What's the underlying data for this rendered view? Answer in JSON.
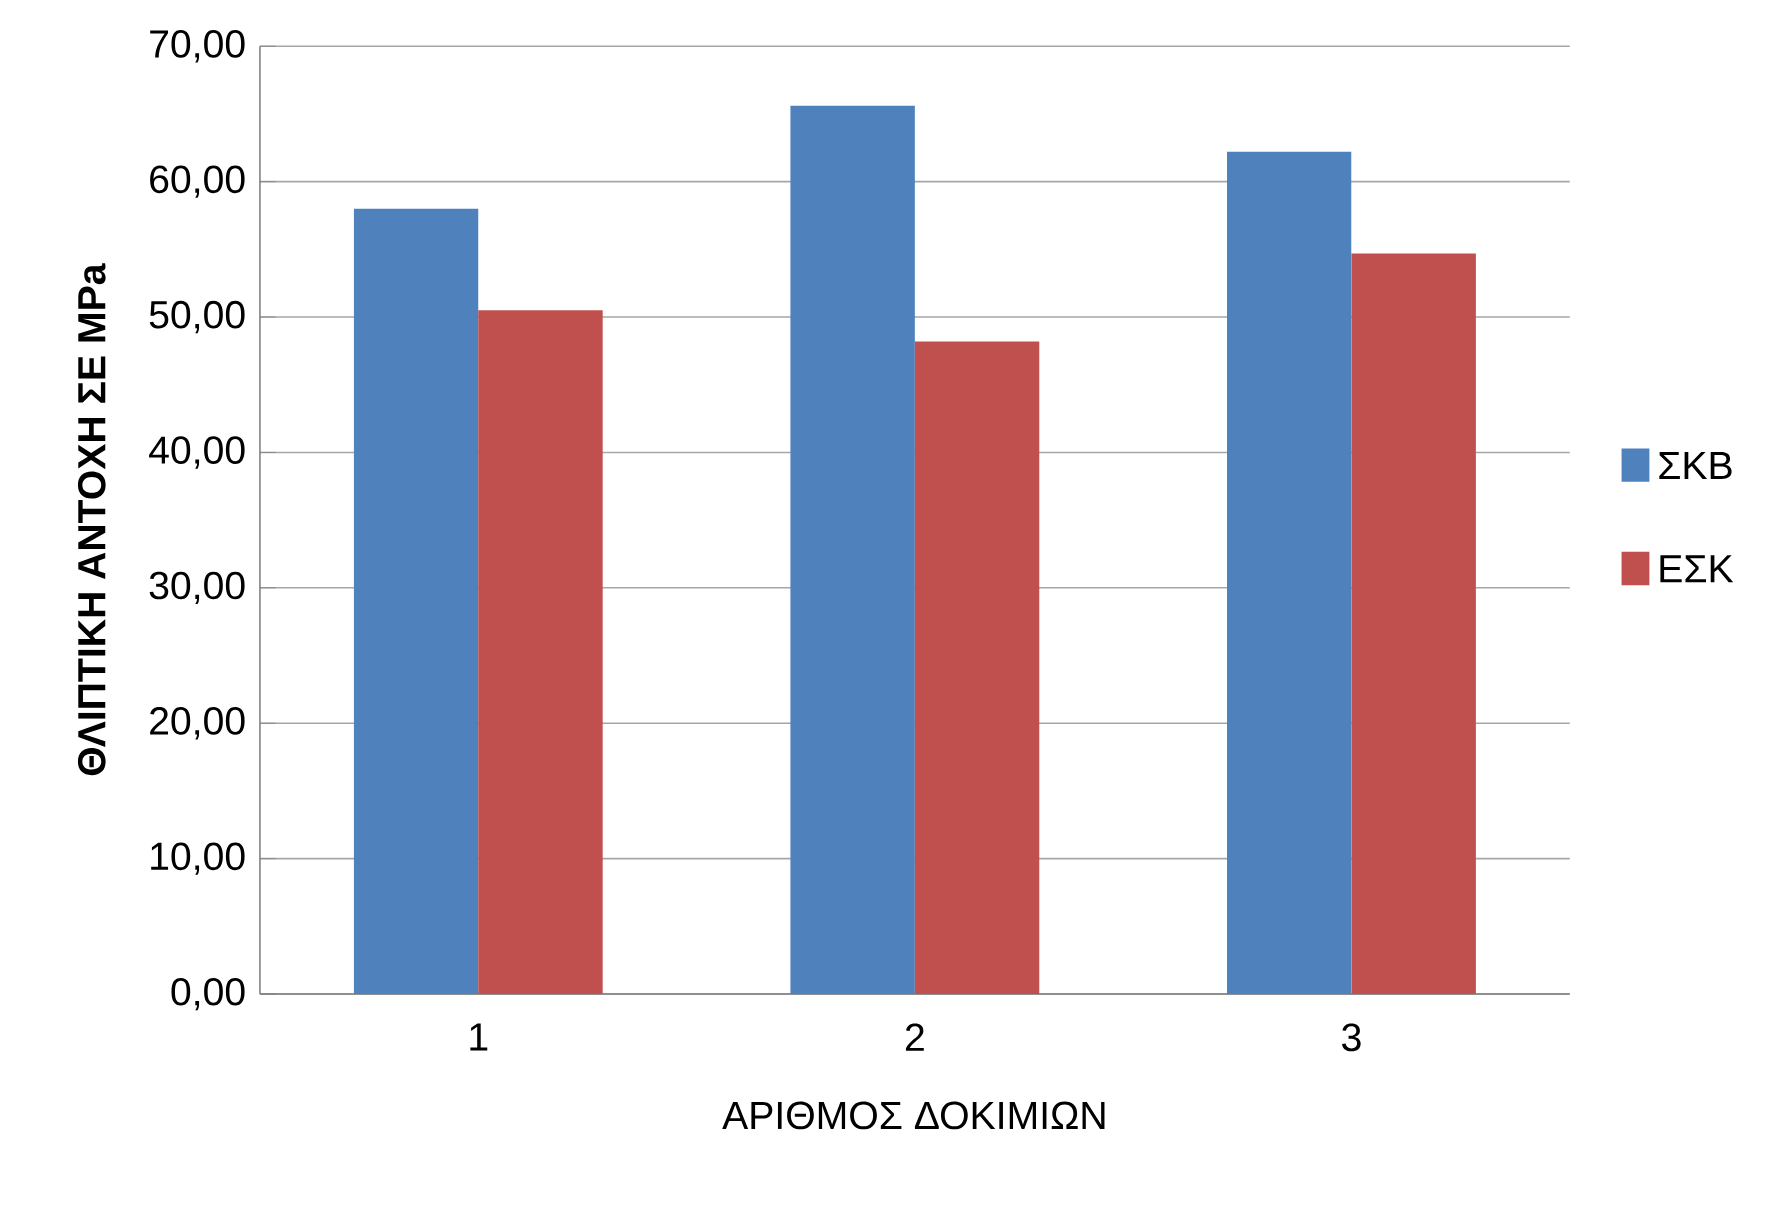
{
  "chart_data": {
    "type": "bar",
    "ylabel": "ΘΛΙΠΤΙΚΗ  ΑΝΤΟΧΗ  ΣΕ  MPa",
    "xlabel": "ΑΡΙΘΜΟΣ ΔΟΚΙΜΙΩΝ",
    "categories": [
      "1",
      "2",
      "3"
    ],
    "series": [
      {
        "name": "ΣΚΒ",
        "color": "#4f81bd",
        "values": [
          58.0,
          65.6,
          62.2
        ]
      },
      {
        "name": "ΕΣΚ",
        "color": "#c0504d",
        "values": [
          50.5,
          48.2,
          54.7
        ]
      }
    ],
    "ylim": [
      0,
      70
    ],
    "yticks": [
      {
        "value": 0,
        "label": "0,00"
      },
      {
        "value": 10,
        "label": "10,00"
      },
      {
        "value": 20,
        "label": "20,00"
      },
      {
        "value": 30,
        "label": "30,00"
      },
      {
        "value": 40,
        "label": "40,00"
      },
      {
        "value": 50,
        "label": "50,00"
      },
      {
        "value": 60,
        "label": "60,00"
      },
      {
        "value": 70,
        "label": "70,00"
      }
    ],
    "grid": "y",
    "legend": "right"
  }
}
